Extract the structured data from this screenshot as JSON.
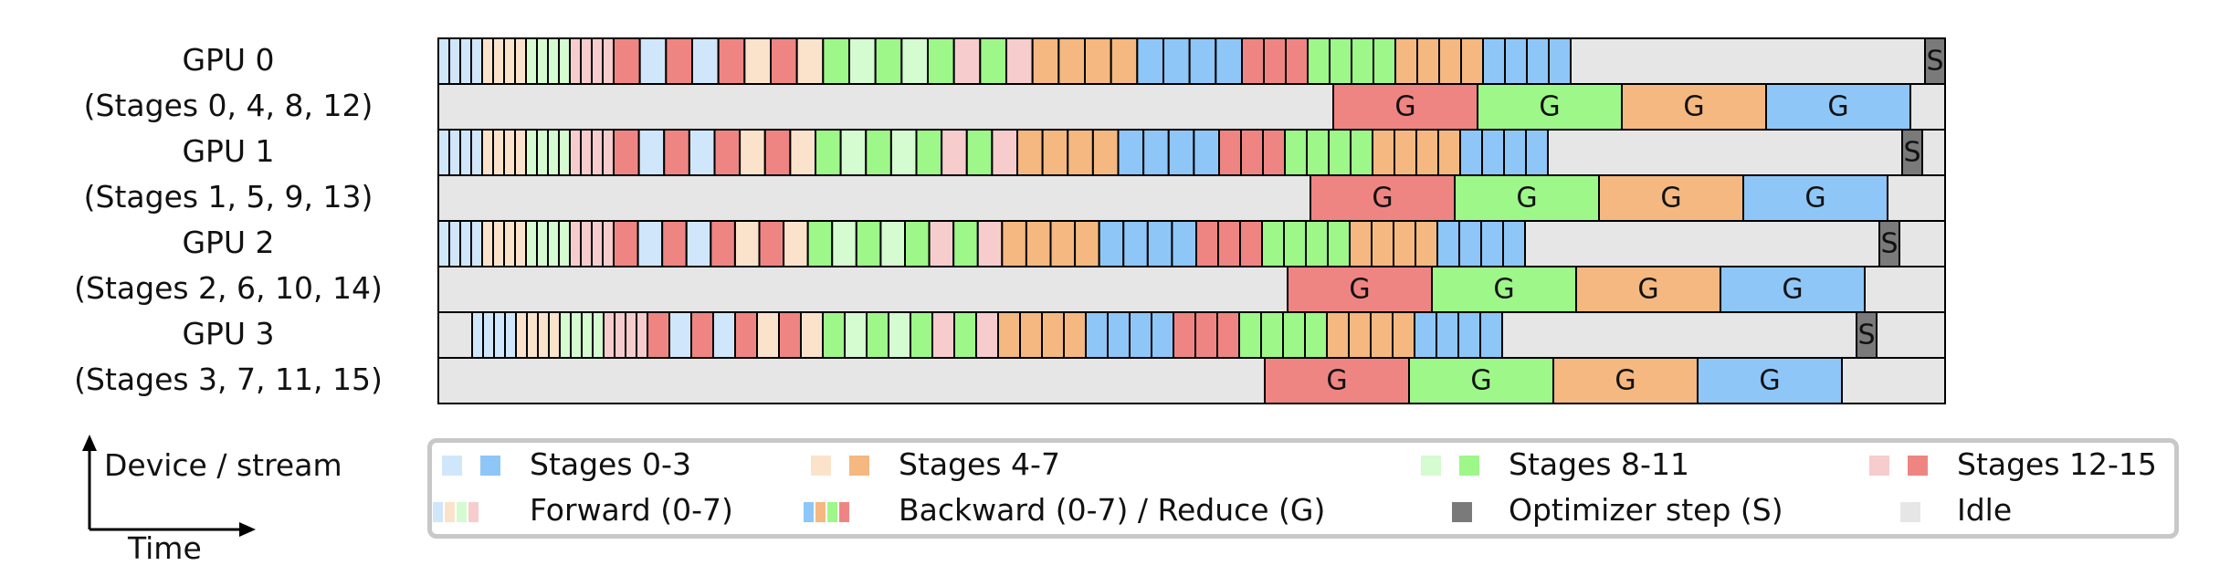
{
  "gpus": [
    {
      "name": "GPU 0",
      "stages": "(Stages 0, 4, 8, 12)"
    },
    {
      "name": "GPU 1",
      "stages": "(Stages 1, 5, 9, 13)"
    },
    {
      "name": "GPU 2",
      "stages": "(Stages 2, 6, 10, 14)"
    },
    {
      "name": "GPU 3",
      "stages": "(Stages 3, 7, 11, 15)"
    }
  ],
  "block_labels": {
    "reduce": "G",
    "optimizer": "S"
  },
  "legend": {
    "stages_0_3": "Stages 0-3",
    "stages_4_7": "Stages 4-7",
    "stages_8_11": "Stages 8-11",
    "stages_12_15": "Stages 12-15",
    "forward": "Forward (0-7)",
    "backward": "Backward (0-7) / Reduce (G)",
    "optimizer": "Optimizer step (S)",
    "idle": "Idle"
  },
  "axes": {
    "vertical": "Device / stream",
    "horizontal": "Time"
  },
  "colors": {
    "fwd_blue": "#d0e6fb",
    "bwd_blue": "#8ec6f7",
    "fwd_orange": "#fbe3cb",
    "bwd_orange": "#f4b880",
    "fwd_green": "#d5fbd0",
    "bwd_green": "#9ef789",
    "fwd_red": "#f6cccc",
    "bwd_red": "#ef8582",
    "idle": "#e6e6e6",
    "optimizer": "#7a7a7a",
    "border": "#000000"
  }
}
